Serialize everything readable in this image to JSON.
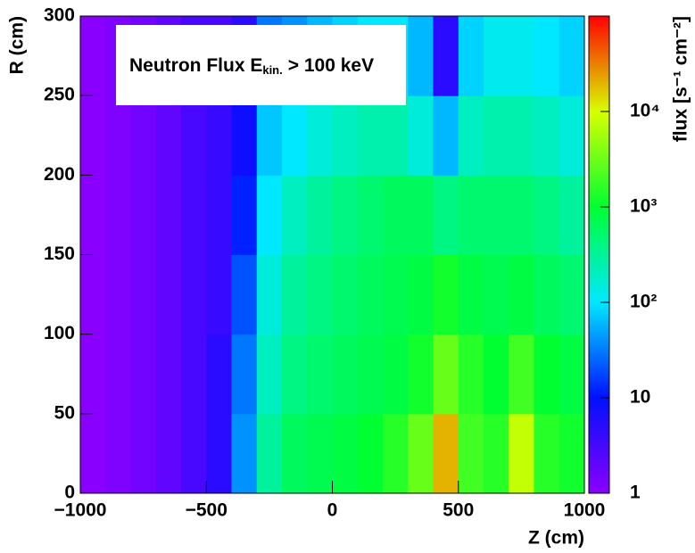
{
  "chart_data": {
    "type": "heatmap",
    "legend_box": {
      "main": "Neutron Flux E",
      "sub": "kin.",
      "tail": "> 100 keV"
    },
    "xlabel": "Z (cm)",
    "ylabel": "R (cm)",
    "colorbar_label": "flux [s⁻¹ cm⁻²]",
    "xbins": [
      -1000,
      -900,
      -800,
      -700,
      -600,
      -500,
      -400,
      -300,
      -200,
      -100,
      0,
      100,
      200,
      300,
      400,
      500,
      600,
      700,
      800,
      900,
      1000
    ],
    "ybins": [
      0,
      50,
      100,
      150,
      200,
      250,
      300
    ],
    "z": [
      [
        1,
        1.2,
        1.5,
        2,
        3,
        5,
        40,
        300,
        600,
        700,
        800,
        1000,
        1500,
        3000,
        20000,
        2000,
        1500,
        8000,
        1500,
        1200
      ],
      [
        1,
        1.2,
        1.5,
        2,
        3,
        5,
        30,
        200,
        400,
        500,
        600,
        700,
        800,
        1200,
        3000,
        1500,
        1000,
        2000,
        1000,
        800
      ],
      [
        1,
        1.2,
        1.5,
        2,
        3,
        4,
        20,
        150,
        300,
        400,
        500,
        600,
        700,
        800,
        1200,
        800,
        700,
        800,
        600,
        500
      ],
      [
        1,
        1.2,
        1.5,
        2,
        3,
        4,
        12,
        100,
        200,
        300,
        400,
        500,
        600,
        600,
        400,
        500,
        500,
        500,
        400,
        300
      ],
      [
        1,
        1.2,
        1.5,
        2,
        3,
        4,
        8,
        70,
        100,
        150,
        200,
        250,
        250,
        150,
        60,
        200,
        250,
        250,
        200,
        150
      ],
      [
        1,
        1.2,
        1.5,
        2,
        3,
        3,
        5,
        30,
        40,
        60,
        80,
        100,
        100,
        60,
        5,
        80,
        120,
        120,
        100,
        80
      ]
    ],
    "xlim": [
      -1000,
      1000
    ],
    "ylim": [
      0,
      300
    ],
    "xticks": [
      {
        "value": -1000,
        "label": "−1000"
      },
      {
        "value": -500,
        "label": "−500"
      },
      0,
      500,
      1000
    ],
    "yticks": [
      0,
      50,
      100,
      150,
      200,
      250,
      300
    ],
    "zlim": [
      1,
      100000
    ],
    "zlog": true,
    "zticks": [
      1,
      10,
      {
        "value": 100,
        "label": "10²"
      },
      {
        "value": 1000,
        "label": "10³"
      },
      {
        "value": 10000,
        "label": "10⁴"
      }
    ],
    "colormap": [
      "#8a00ff",
      "#0010ff",
      "#00e8ff",
      "#00ff30",
      "#d8ff00",
      "#ff0000"
    ]
  }
}
